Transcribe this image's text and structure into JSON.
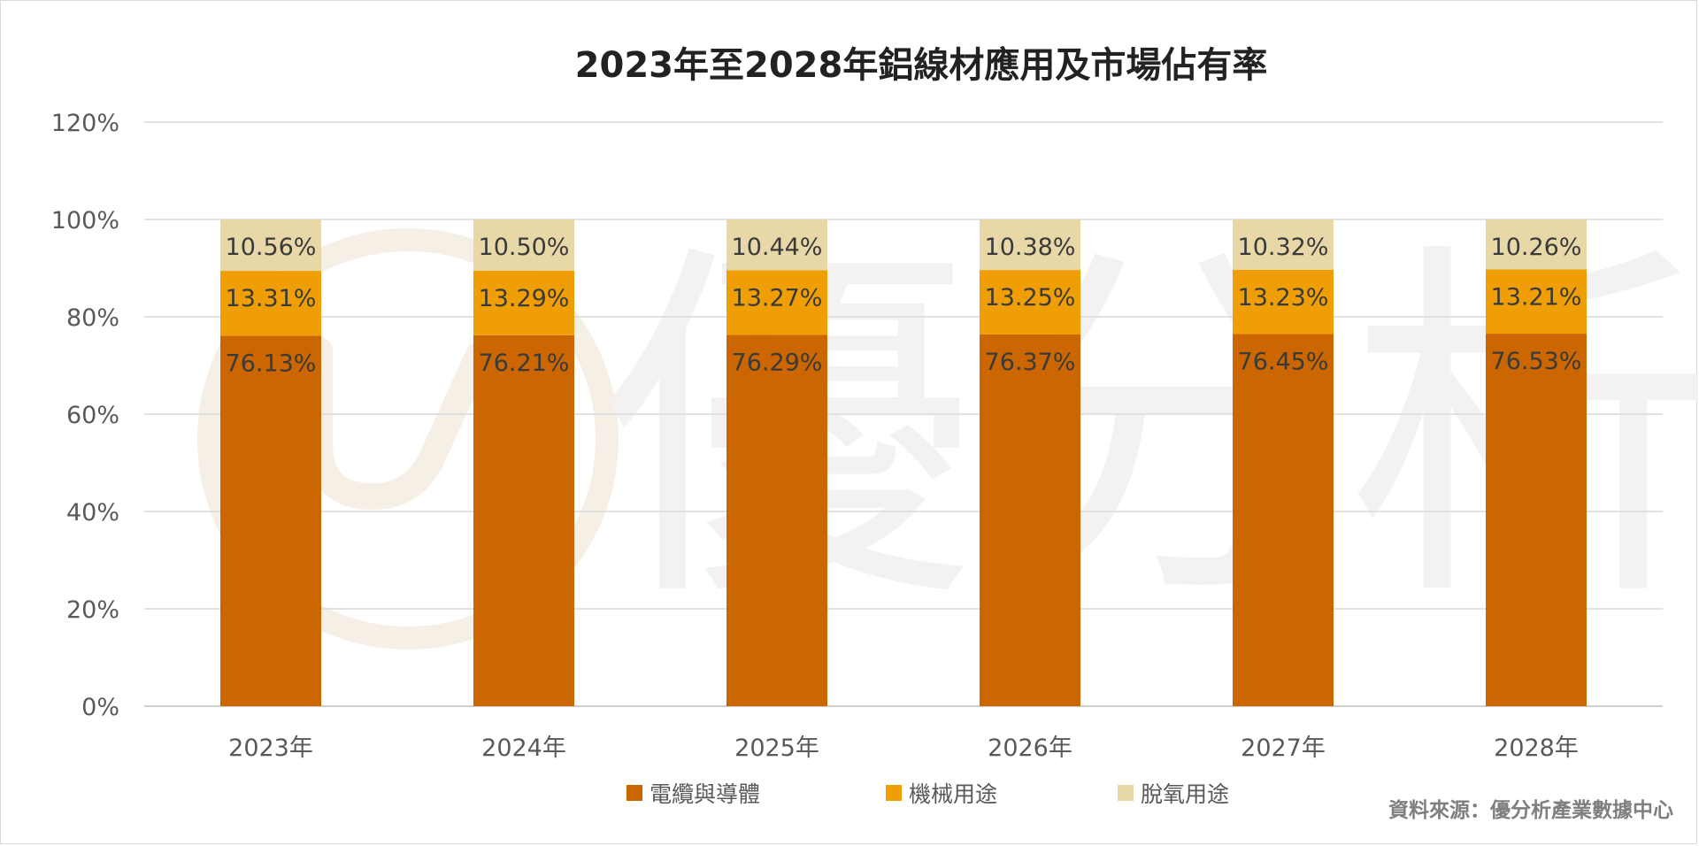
{
  "chart_data": {
    "type": "bar",
    "stacked": true,
    "title": "2023年至2028年鋁線材應用及市場佔有率",
    "categories": [
      "2023年",
      "2024年",
      "2025年",
      "2026年",
      "2027年",
      "2028年"
    ],
    "series": [
      {
        "name": "電纜與導體",
        "color": "#cc6600",
        "values": [
          76.13,
          76.21,
          76.29,
          76.37,
          76.45,
          76.53
        ]
      },
      {
        "name": "機械用途",
        "color": "#ef9e06",
        "values": [
          13.31,
          13.29,
          13.27,
          13.25,
          13.23,
          13.21
        ]
      },
      {
        "name": "脫氧用途",
        "color": "#e8d8a8",
        "values": [
          10.56,
          10.5,
          10.44,
          10.38,
          10.32,
          10.26
        ]
      }
    ],
    "value_suffix": "%",
    "ylim": [
      0,
      120
    ],
    "yticks": [
      0,
      20,
      40,
      60,
      80,
      100,
      120
    ],
    "grid": true,
    "legend_position": "bottom"
  },
  "watermark": {
    "text": "優分析"
  },
  "source_note": "資料來源：優分析產業數據中心"
}
